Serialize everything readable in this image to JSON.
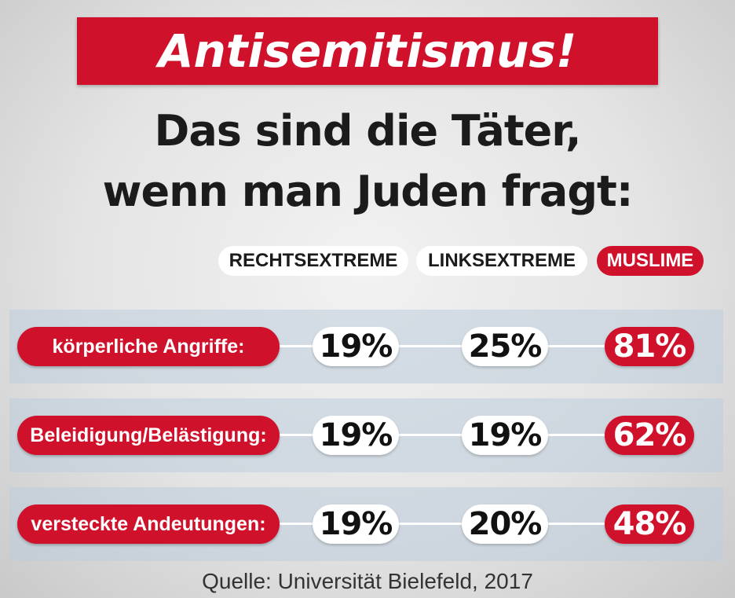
{
  "headline": "Antisemitismus!",
  "subtitle": {
    "line1": "Das sind die Täter,",
    "line2": "wenn man Juden fragt:"
  },
  "colors": {
    "accent_red": "#d0112b",
    "band": "#bfcdda",
    "text_dark": "#1b1b1b"
  },
  "chart_data": {
    "type": "table",
    "columns": [
      "RECHTSEXTREME",
      "LINKSEXTREME",
      "MUSLIME"
    ],
    "highlight_column": "MUSLIME",
    "rows": [
      {
        "label": "körperliche Angriffe:",
        "values": [
          "19%",
          "25%",
          "81%"
        ]
      },
      {
        "label": "Beleidigung/Belästigung:",
        "values": [
          "19%",
          "19%",
          "62%"
        ]
      },
      {
        "label": "versteckte Andeutungen:",
        "values": [
          "19%",
          "20%",
          "48%"
        ]
      }
    ],
    "source": "Quelle: Universität Bielefeld, 2017"
  }
}
